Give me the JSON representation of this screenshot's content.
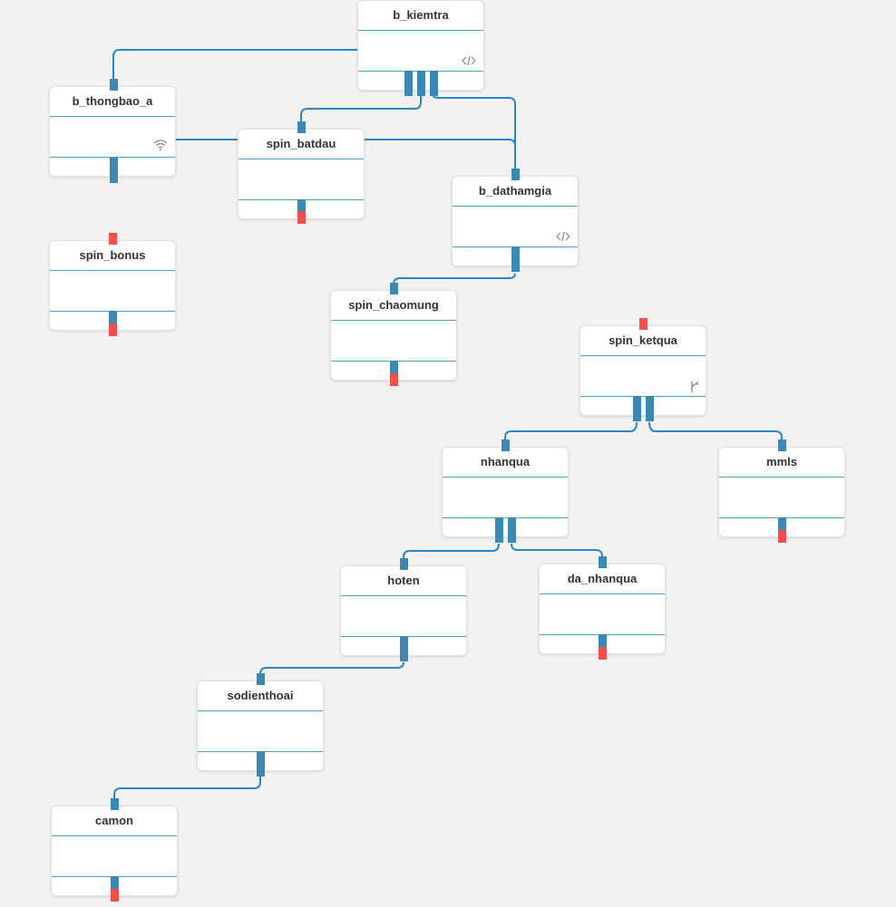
{
  "nodes": {
    "b_kiemtra": {
      "label": "b_kiemtra",
      "icon": "code-icon"
    },
    "b_thongbao_a": {
      "label": "b_thongbao_a",
      "icon": "wifi-icon"
    },
    "spin_batdau": {
      "label": "spin_batdau"
    },
    "b_dathamgia": {
      "label": "b_dathamgia",
      "icon": "code-icon"
    },
    "spin_bonus": {
      "label": "spin_bonus"
    },
    "spin_chaomung": {
      "label": "spin_chaomung"
    },
    "spin_ketqua": {
      "label": "spin_ketqua",
      "icon": "branch-icon"
    },
    "nhanqua": {
      "label": "nhanqua"
    },
    "mmls": {
      "label": "mmls"
    },
    "hoten": {
      "label": "hoten"
    },
    "da_nhanqua": {
      "label": "da_nhanqua"
    },
    "sodienthoai": {
      "label": "sodienthoai"
    },
    "camon": {
      "label": "camon"
    }
  },
  "colors": {
    "wire": "#2a85cc",
    "port": "#3b88b5",
    "port_unconnected": "#f24e4e",
    "separator": "#4aa3c8",
    "canvas": "#f3f2f1"
  }
}
